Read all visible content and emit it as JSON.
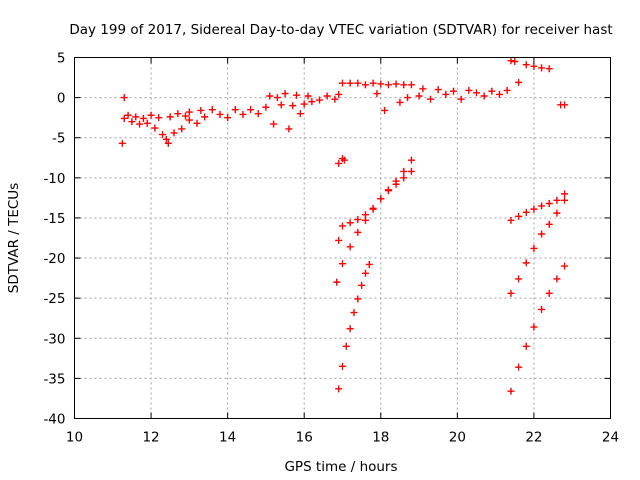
{
  "chart_data": {
    "type": "scatter",
    "title": "Day 199 of 2017, Sidereal Day-to-day VTEC variation (SDTVAR) for receiver hast",
    "xlabel": "GPS time / hours",
    "ylabel": "SDTVAR / TECUs",
    "xlim": [
      10,
      24
    ],
    "ylim": [
      -40,
      5
    ],
    "xticks": [
      10,
      12,
      14,
      16,
      18,
      20,
      22,
      24
    ],
    "yticks": [
      5,
      0,
      -5,
      -10,
      -15,
      -20,
      -25,
      -30,
      -35,
      -40
    ],
    "grid": true,
    "marker": "+",
    "color": "#ff0000",
    "series": [
      {
        "points": [
          [
            11.25,
            -5.7
          ],
          [
            11.3,
            0.0
          ],
          [
            11.3,
            -2.6
          ],
          [
            11.4,
            -2.2
          ],
          [
            11.5,
            -3.0
          ],
          [
            11.6,
            -2.4
          ],
          [
            11.7,
            -3.3
          ],
          [
            11.8,
            -2.6
          ],
          [
            11.9,
            -3.2
          ],
          [
            12.0,
            -2.2
          ],
          [
            12.1,
            -3.8
          ],
          [
            12.2,
            -2.5
          ],
          [
            12.3,
            -4.6
          ],
          [
            12.4,
            -5.2
          ],
          [
            12.45,
            -5.7
          ],
          [
            12.5,
            -2.4
          ],
          [
            12.6,
            -4.4
          ],
          [
            12.7,
            -2.0
          ],
          [
            12.8,
            -3.9
          ],
          [
            12.9,
            -2.3
          ],
          [
            13.0,
            -2.8
          ],
          [
            13.0,
            -1.8
          ],
          [
            13.2,
            -3.2
          ],
          [
            13.3,
            -1.6
          ],
          [
            13.4,
            -2.4
          ],
          [
            13.6,
            -1.5
          ],
          [
            13.8,
            -2.1
          ],
          [
            14.0,
            -2.5
          ],
          [
            14.2,
            -1.5
          ],
          [
            14.4,
            -2.1
          ],
          [
            14.6,
            -1.5
          ],
          [
            14.8,
            -2.0
          ],
          [
            15.0,
            -1.2
          ],
          [
            15.1,
            0.2
          ],
          [
            15.2,
            -3.3
          ],
          [
            15.3,
            0.0
          ],
          [
            15.4,
            -0.9
          ],
          [
            15.5,
            0.5
          ],
          [
            15.6,
            -3.9
          ],
          [
            15.7,
            -1.0
          ],
          [
            15.8,
            0.3
          ],
          [
            15.9,
            -2.0
          ],
          [
            16.0,
            -0.8
          ],
          [
            16.1,
            0.2
          ],
          [
            16.2,
            -0.5
          ],
          [
            16.4,
            -0.3
          ],
          [
            16.6,
            0.2
          ],
          [
            16.8,
            -0.2
          ],
          [
            16.9,
            0.4
          ],
          [
            17.0,
            1.8
          ],
          [
            17.2,
            1.8
          ],
          [
            17.4,
            1.8
          ],
          [
            17.6,
            1.6
          ],
          [
            17.8,
            1.8
          ],
          [
            17.9,
            0.5
          ],
          [
            18.0,
            1.7
          ],
          [
            18.1,
            -1.6
          ],
          [
            18.2,
            1.6
          ],
          [
            18.4,
            1.7
          ],
          [
            18.5,
            -0.6
          ],
          [
            18.6,
            1.6
          ],
          [
            18.7,
            0.0
          ],
          [
            18.8,
            1.6
          ],
          [
            19.0,
            0.2
          ],
          [
            19.1,
            1.1
          ],
          [
            19.3,
            -0.2
          ],
          [
            19.5,
            1.0
          ],
          [
            19.7,
            0.4
          ],
          [
            19.9,
            0.8
          ],
          [
            20.1,
            -0.2
          ],
          [
            20.3,
            0.9
          ],
          [
            20.5,
            0.6
          ],
          [
            20.7,
            0.2
          ],
          [
            20.9,
            0.8
          ],
          [
            21.1,
            0.4
          ],
          [
            21.3,
            0.9
          ],
          [
            21.4,
            4.6
          ],
          [
            21.5,
            4.5
          ],
          [
            21.6,
            1.9
          ],
          [
            21.8,
            4.1
          ],
          [
            22.0,
            3.9
          ],
          [
            22.2,
            3.7
          ],
          [
            22.4,
            3.6
          ],
          [
            22.7,
            -0.9
          ],
          [
            22.8,
            -0.9
          ],
          [
            16.9,
            -8.2
          ],
          [
            17.0,
            -7.6
          ],
          [
            17.05,
            -7.8
          ],
          [
            16.85,
            -23.0
          ],
          [
            17.0,
            -20.7
          ],
          [
            17.2,
            -18.6
          ],
          [
            17.4,
            -16.8
          ],
          [
            17.6,
            -15.3
          ],
          [
            17.8,
            -13.9
          ],
          [
            18.0,
            -12.6
          ],
          [
            18.2,
            -11.5
          ],
          [
            18.4,
            -10.4
          ],
          [
            18.6,
            -9.2
          ],
          [
            18.8,
            -7.8
          ],
          [
            16.9,
            -17.8
          ],
          [
            17.0,
            -16.0
          ],
          [
            17.2,
            -15.6
          ],
          [
            17.4,
            -15.2
          ],
          [
            17.6,
            -14.6
          ],
          [
            17.8,
            -13.8
          ],
          [
            18.0,
            -12.6
          ],
          [
            18.2,
            -11.6
          ],
          [
            18.4,
            -10.8
          ],
          [
            18.6,
            -10.0
          ],
          [
            18.8,
            -9.2
          ],
          [
            16.9,
            -36.3
          ],
          [
            17.0,
            -33.5
          ],
          [
            17.1,
            -31.0
          ],
          [
            17.2,
            -28.8
          ],
          [
            17.3,
            -26.8
          ],
          [
            17.4,
            -25.1
          ],
          [
            17.5,
            -23.4
          ],
          [
            17.6,
            -21.9
          ],
          [
            17.7,
            -20.8
          ],
          [
            21.4,
            -15.3
          ],
          [
            21.6,
            -14.8
          ],
          [
            21.8,
            -14.3
          ],
          [
            22.0,
            -13.9
          ],
          [
            22.2,
            -13.5
          ],
          [
            22.4,
            -13.2
          ],
          [
            22.6,
            -12.8
          ],
          [
            22.8,
            -12.0
          ],
          [
            21.4,
            -24.4
          ],
          [
            21.6,
            -22.6
          ],
          [
            21.8,
            -20.6
          ],
          [
            22.0,
            -18.8
          ],
          [
            22.2,
            -17.0
          ],
          [
            22.4,
            -15.8
          ],
          [
            22.6,
            -14.4
          ],
          [
            22.8,
            -12.8
          ],
          [
            21.4,
            -36.6
          ],
          [
            21.6,
            -33.6
          ],
          [
            21.8,
            -31.0
          ],
          [
            22.0,
            -28.6
          ],
          [
            22.2,
            -26.4
          ],
          [
            22.4,
            -24.4
          ],
          [
            22.6,
            -22.6
          ],
          [
            22.8,
            -21.0
          ]
        ]
      }
    ]
  }
}
